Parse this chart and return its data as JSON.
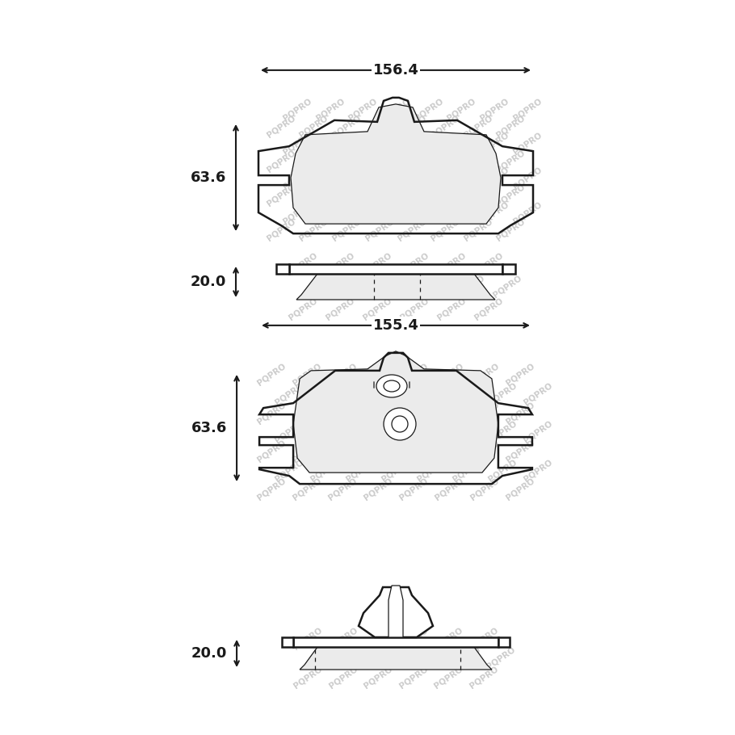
{
  "bg_color": "#ffffff",
  "line_color": "#1a1a1a",
  "wm_color": "#cccccc",
  "wm_text": "PQPRO",
  "dim1_width": "156.4",
  "dim1_height": "63.6",
  "dim2_height": "20.0",
  "dim3_width": "155.4",
  "dim3_height": "63.6",
  "dim4_height": "20.0",
  "dim_fontsize": 13,
  "wm_fontsize": 7.5,
  "lw_main": 1.8,
  "lw_thin": 0.9,
  "lw_dim": 1.5
}
